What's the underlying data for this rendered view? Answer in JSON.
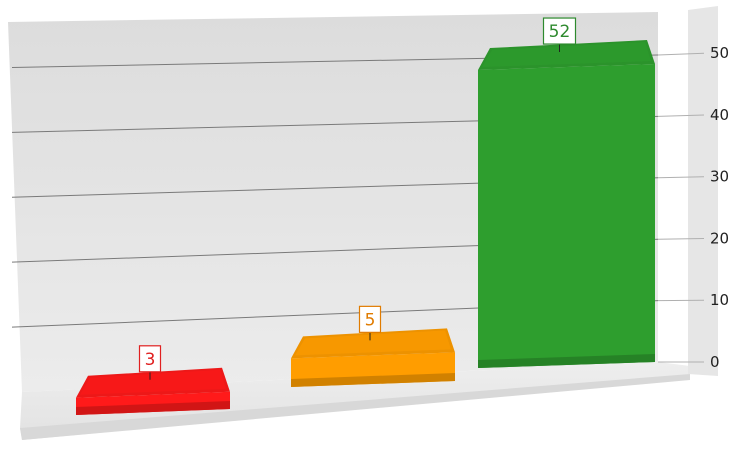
{
  "chart_data": {
    "type": "bar",
    "title": "",
    "xlabel": "",
    "ylabel": "",
    "categories": [
      "",
      "",
      ""
    ],
    "values": [
      3,
      5,
      52
    ],
    "data_labels": [
      "3",
      "5",
      "52"
    ],
    "ylim": [
      0,
      57
    ],
    "yticks": [
      0,
      10,
      20,
      30,
      40,
      50
    ],
    "ytick_labels": [
      "0",
      "10",
      "20",
      "30",
      "40",
      "50"
    ],
    "grid": true,
    "legend": "none",
    "colors": [
      "#ff1a1a",
      "#ff9d00",
      "#2e9e2e"
    ],
    "label_colors": [
      "#e02020",
      "#e07b00",
      "#2e8a2e"
    ],
    "style": "3d"
  }
}
